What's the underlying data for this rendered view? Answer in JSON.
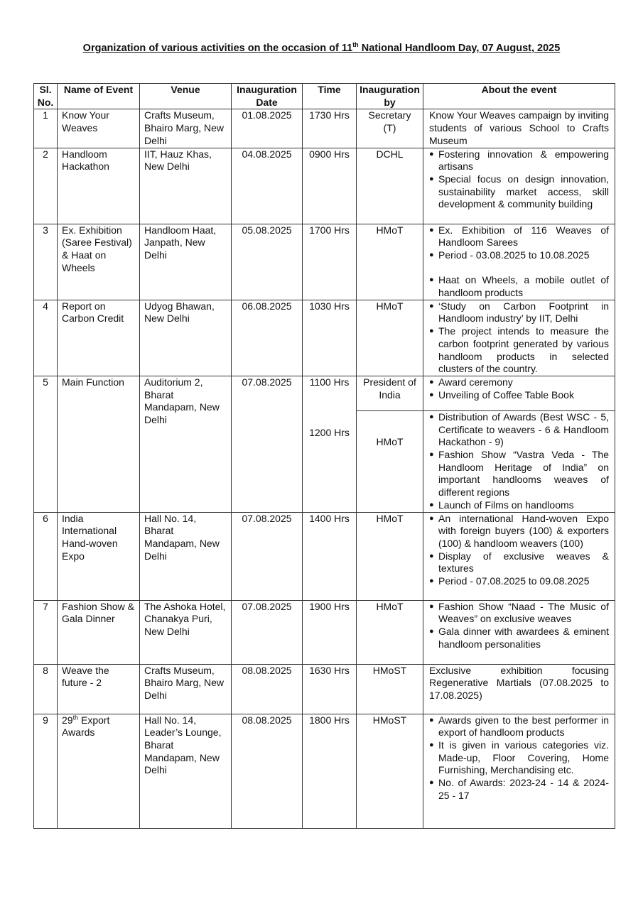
{
  "title": {
    "pre": "Organization of various activities on the occasion of 11",
    "sup": "th",
    "post": " National Handloom Day, 07 August, 2025"
  },
  "headers": [
    "Sl. No.",
    "Name of Event",
    "Venue",
    "Inauguration Date",
    "Time",
    "Inauguration by",
    "About the event"
  ],
  "rows": [
    {
      "sl": "1",
      "name": "Know Your Weaves",
      "venue": "Crafts Museum, Bhairo Marg, New Delhi",
      "date": "01.08.2025",
      "time": "1730 Hrs",
      "by": "Secretary (T)",
      "about": "Know Your Weaves campaign by inviting students of various  School to Crafts Museum"
    },
    {
      "sl": "2",
      "name": "Handloom Hackathon",
      "venue": "IIT, Hauz Khas, New Delhi",
      "date": "04.08.2025",
      "time": "0900 Hrs",
      "by": "DCHL",
      "bullets": [
        "Fostering innovation & empowering artisans",
        "Special focus on design innovation, sustainability market access, skill development & community building"
      ]
    },
    {
      "sl": "3",
      "name": "Ex. Exhibition (Saree Festival) & Haat on Wheels",
      "venue": "Handloom Haat, Janpath, New Delhi",
      "date": "05.08.2025",
      "time": "1700 Hrs",
      "by": "HMoT",
      "bullets": [
        "Ex. Exhibition of 116 Weaves of Handloom Sarees",
        "Period - 03.08.2025 to 10.08.2025",
        "Haat on Wheels, a mobile outlet of handloom products"
      ]
    },
    {
      "sl": "4",
      "name": "Report on Carbon Credit",
      "venue": "Udyog Bhawan, New Delhi",
      "date": "06.08.2025",
      "time": "1030 Hrs",
      "by": "HMoT",
      "bullets": [
        "‘Study on Carbon Footprint in Handloom industry’ by IIT, Delhi",
        "The project intends to measure the carbon footprint generated by various handloom products in selected clusters of the country."
      ]
    },
    {
      "sl": "5",
      "name": "Main Function",
      "venue": "Auditorium 2, Bharat Mandapam, New Delhi",
      "date": "07.08.2025",
      "time": "1100 Hrs",
      "by": "President of India",
      "bullets": [
        "Award ceremony",
        "Unveiling of Coffee Table Book"
      ],
      "second": {
        "time": "1200 Hrs",
        "by": "HMoT",
        "bullets": [
          "Distribution of Awards (Best WSC - 5, Certificate to weavers - 6 & Handloom Hackathon - 9)",
          "Fashion Show “Vastra Veda - The Handloom Heritage of India” on important handlooms weaves of different regions",
          "Launch of Films on handlooms"
        ]
      }
    },
    {
      "sl": "6",
      "name": "India International Hand-woven Expo",
      "venue": "Hall No. 14, Bharat Mandapam, New Delhi",
      "date": "07.08.2025",
      "time": "1400 Hrs",
      "by": "HMoT",
      "bullets": [
        "An international Hand-woven Expo with foreign buyers (100) & exporters (100) & handloom weavers (100)",
        "Display of exclusive weaves & textures",
        "Period - 07.08.2025 to 09.08.2025"
      ]
    },
    {
      "sl": "7",
      "name": "Fashion Show & Gala Dinner",
      "venue": "The Ashoka Hotel, Chanakya Puri, New Delhi",
      "date": "07.08.2025",
      "time": "1900 Hrs",
      "by": "HMoT",
      "bullets": [
        "Fashion Show “Naad - The Music of Weaves” on exclusive weaves",
        "Gala dinner with awardees & eminent handloom personalities"
      ]
    },
    {
      "sl": "8",
      "name": "Weave the future - 2",
      "venue": "Crafts Museum, Bhairo Marg, New Delhi",
      "date": "08.08.2025",
      "time": "1630 Hrs",
      "by": "HMoST",
      "about": "Exclusive exhibition focusing Regenerative Martials (07.08.2025 to 17.08.2025)"
    },
    {
      "sl": "9",
      "name_pre": "29",
      "name_sup": "th",
      "name": " Export Awards",
      "venue": "Hall No. 14, Leader’s Lounge, Bharat Mandapam, New Delhi",
      "date": "08.08.2025",
      "time": "1800 Hrs",
      "by": "HMoST",
      "bullets": [
        "Awards given to the best performer in export of handloom products",
        "It is given in various categories viz. Made-up, Floor Covering, Home Furnishing, Merchandising etc.",
        "No. of Awards: 2023-24 - 14 & 2024-25 - 17"
      ]
    }
  ]
}
